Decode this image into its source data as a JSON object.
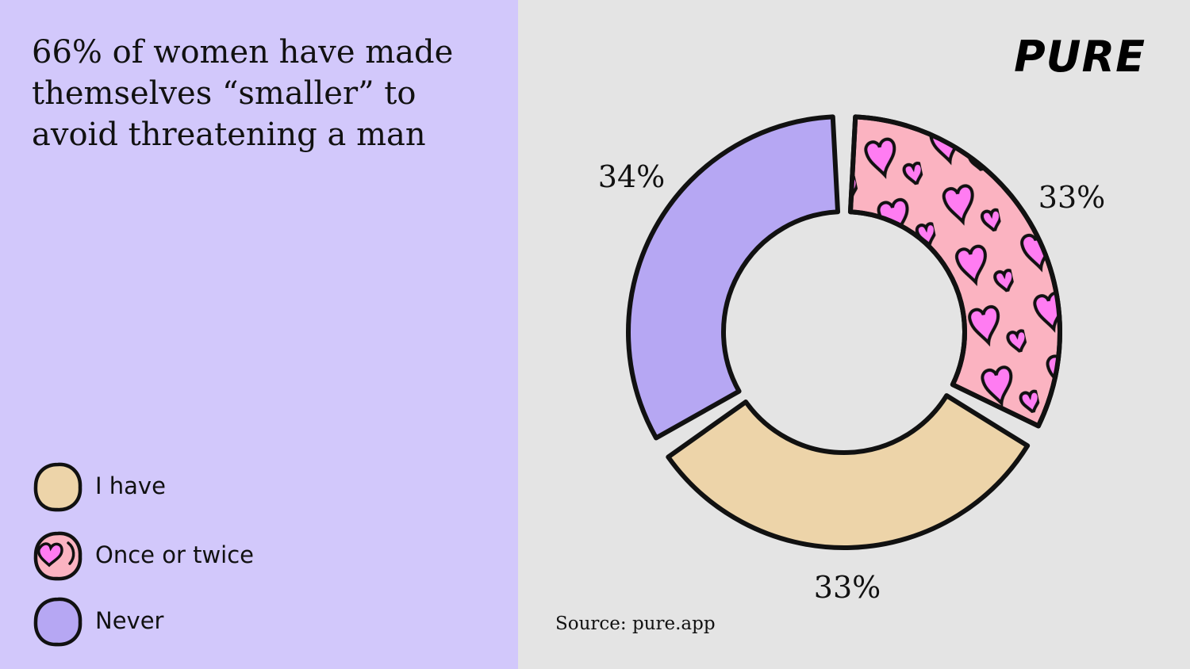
{
  "title": "66% of women have made themselves “smaller” to avoid threatening a man",
  "brand": {
    "logo_text": "PURE"
  },
  "source": "Source: pure.app",
  "colors": {
    "left_panel_bg": "#d2c8fb",
    "right_panel_bg": "#e4e4e4",
    "i_have": "#edd4a9",
    "once_or_twice": "#fbb3c1",
    "once_or_twice_pattern": "#ff7cf2",
    "never": "#b6a7f3",
    "outline": "#111111"
  },
  "chart_data": {
    "type": "pie",
    "donut": true,
    "title": "66% of women have made themselves “smaller” to avoid threatening a man",
    "slices": [
      {
        "label": "Once or twice",
        "value": 33,
        "display": "33%",
        "color": "#fbb3c1",
        "pattern": "hearts",
        "pattern_color": "#ff7cf2"
      },
      {
        "label": "I have",
        "value": 33,
        "display": "33%",
        "color": "#edd4a9"
      },
      {
        "label": "Never",
        "value": 34,
        "display": "34%",
        "color": "#b6a7f3"
      }
    ],
    "legend": {
      "placement": "bottom-left",
      "entries": [
        "I have",
        "Once or twice",
        "Never"
      ]
    }
  }
}
